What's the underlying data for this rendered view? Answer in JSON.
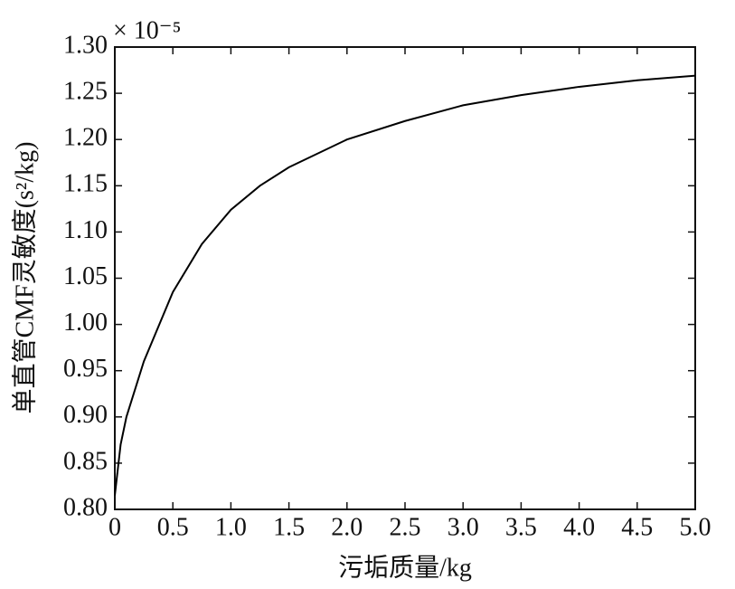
{
  "chart_data": {
    "type": "line",
    "x_label": "污垢质量/kg",
    "y_label": "单直管CMF灵敏度(s²/kg)",
    "y_multiplier": "× 10⁻⁵",
    "x": [
      0,
      0.05,
      0.1,
      0.25,
      0.5,
      0.75,
      1.0,
      1.25,
      1.5,
      2.0,
      2.5,
      3.0,
      3.5,
      4.0,
      4.5,
      5.0
    ],
    "series": [
      {
        "color": "#000000",
        "values": [
          0.815,
          0.87,
          0.9,
          0.96,
          1.035,
          1.087,
          1.124,
          1.15,
          1.17,
          1.2,
          1.22,
          1.237,
          1.248,
          1.257,
          1.264,
          1.269
        ]
      }
    ],
    "xlim": [
      0,
      5
    ],
    "xticks": [
      0,
      0.5,
      {
        "value": 1,
        "label": "1.0"
      },
      1.5,
      {
        "value": 2,
        "label": "2.0"
      },
      2.5,
      {
        "value": 3,
        "label": "3.0"
      },
      3.5,
      {
        "value": 4,
        "label": "4.0"
      },
      4.5,
      {
        "value": 5,
        "label": "5.0"
      }
    ],
    "ylim": [
      0.8,
      1.3
    ],
    "yticks": [
      {
        "value": 0.8,
        "label": "0.80"
      },
      0.85,
      {
        "value": 0.9,
        "label": "0.90"
      },
      0.95,
      {
        "value": 1,
        "label": "1.00"
      },
      1.05,
      {
        "value": 1.1,
        "label": "1.10"
      },
      1.15,
      {
        "value": 1.2,
        "label": "1.20"
      },
      1.25,
      {
        "value": 1.3,
        "label": "1.30"
      }
    ]
  }
}
